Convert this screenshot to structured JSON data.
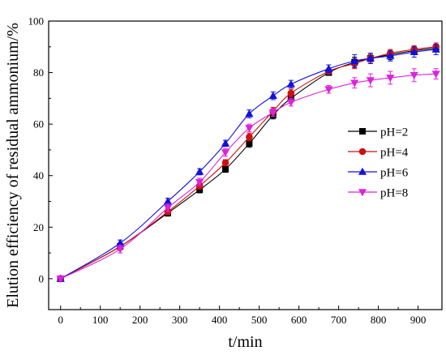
{
  "chart_data": {
    "type": "line",
    "xlabel": "t/min",
    "ylabel": "Elution efficiency of residual ammonium/%",
    "xlim": [
      -30,
      960
    ],
    "ylim": [
      -12,
      100
    ],
    "xticks": [
      0,
      100,
      200,
      300,
      400,
      500,
      600,
      700,
      800,
      900
    ],
    "yticks": [
      0,
      20,
      40,
      60,
      80,
      100
    ],
    "x": [
      0,
      150,
      270,
      350,
      415,
      475,
      535,
      580,
      675,
      740,
      780,
      830,
      890,
      945
    ],
    "legend_position": "right",
    "series": [
      {
        "name": "pH=2",
        "marker": "square",
        "color": "#000000",
        "values": [
          0,
          12.5,
          25.5,
          34.5,
          42.5,
          52.5,
          63.5,
          70,
          80,
          84,
          85.5,
          87,
          88.5,
          89.5
        ],
        "errors": [
          0.8,
          1.2,
          1.2,
          1.2,
          1.2,
          1.5,
          1.5,
          1.5,
          1,
          2,
          2,
          2,
          1.5,
          1.5
        ]
      },
      {
        "name": "pH=4",
        "marker": "circle",
        "color": "#cc1111",
        "values": [
          0,
          12.5,
          26,
          36,
          45,
          55,
          65,
          72,
          80.5,
          83.5,
          85.5,
          87.5,
          89,
          90
        ],
        "errors": [
          0.8,
          1.2,
          1.2,
          1.2,
          1.2,
          1.5,
          1.5,
          1.5,
          1,
          2,
          1.5,
          1.5,
          1.5,
          1.5
        ]
      },
      {
        "name": "pH=6",
        "marker": "triangle-up",
        "color": "#1111dd",
        "values": [
          0,
          13.8,
          30,
          41.5,
          52.5,
          64,
          71,
          75.5,
          81.5,
          84.5,
          85.5,
          86.5,
          88,
          89
        ],
        "errors": [
          0.8,
          1.2,
          1.2,
          1.2,
          1.2,
          1.5,
          1.5,
          1.5,
          1.5,
          2.5,
          2,
          2,
          2,
          2
        ]
      },
      {
        "name": "pH=8",
        "marker": "triangle-down",
        "color": "#dd22dd",
        "values": [
          0,
          11.5,
          27.5,
          37.5,
          49,
          58.5,
          64.5,
          68.5,
          73.5,
          76,
          77,
          78,
          79,
          79.5
        ],
        "errors": [
          0.8,
          1.5,
          1.5,
          1.5,
          1.5,
          1.5,
          1.5,
          1.5,
          1.5,
          2,
          2.5,
          2.5,
          2.5,
          2
        ]
      }
    ]
  }
}
